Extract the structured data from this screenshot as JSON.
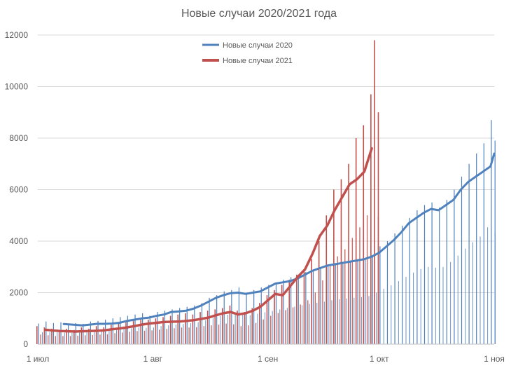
{
  "chart_data": {
    "type": "bar+line",
    "title": "Новые случаи 2020/2021 года",
    "xlabel": "",
    "ylabel": "",
    "ylim": [
      0,
      12000
    ],
    "y_ticks": [
      0,
      2000,
      4000,
      6000,
      8000,
      10000,
      12000
    ],
    "x_ticks": [
      {
        "label": "1 июл",
        "day": 0
      },
      {
        "label": "1 авг",
        "day": 31
      },
      {
        "label": "1 сен",
        "day": 62
      },
      {
        "label": "1 окт",
        "day": 92
      },
      {
        "label": "1 ноя",
        "day": 123
      }
    ],
    "grid": true,
    "legend_position": "top",
    "series": [
      {
        "name": "Новые случаи 2020",
        "color": "#4f81bd",
        "start_day": 0,
        "end_day": 123,
        "daily": [
          [
            0,
            800
          ],
          [
            2,
            880
          ],
          [
            4,
            820
          ],
          [
            6,
            850
          ],
          [
            8,
            760
          ],
          [
            10,
            820
          ],
          [
            12,
            790
          ],
          [
            14,
            880
          ],
          [
            16,
            900
          ],
          [
            18,
            950
          ],
          [
            20,
            1000
          ],
          [
            22,
            1050
          ],
          [
            24,
            1100
          ],
          [
            26,
            1150
          ],
          [
            28,
            1200
          ],
          [
            30,
            1100
          ],
          [
            32,
            1250
          ],
          [
            34,
            1300
          ],
          [
            36,
            1350
          ],
          [
            38,
            1400
          ],
          [
            40,
            1450
          ],
          [
            42,
            1500
          ],
          [
            44,
            1600
          ],
          [
            46,
            1800
          ],
          [
            48,
            1900
          ],
          [
            50,
            2050
          ],
          [
            52,
            2100
          ],
          [
            54,
            2200
          ],
          [
            56,
            2000
          ],
          [
            58,
            2100
          ],
          [
            60,
            2200
          ],
          [
            62,
            2300
          ],
          [
            64,
            2400
          ],
          [
            66,
            2500
          ],
          [
            68,
            2600
          ],
          [
            70,
            2700
          ],
          [
            72,
            2800
          ],
          [
            74,
            2900
          ],
          [
            76,
            2950
          ],
          [
            78,
            3050
          ],
          [
            80,
            3150
          ],
          [
            82,
            3200
          ],
          [
            84,
            3250
          ],
          [
            86,
            3300
          ],
          [
            88,
            3350
          ],
          [
            90,
            3450
          ],
          [
            92,
            3800
          ],
          [
            94,
            4000
          ],
          [
            96,
            4300
          ],
          [
            98,
            4600
          ],
          [
            100,
            4900
          ],
          [
            102,
            5200
          ],
          [
            104,
            5400
          ],
          [
            106,
            5500
          ],
          [
            108,
            5300
          ],
          [
            110,
            5600
          ],
          [
            112,
            6000
          ],
          [
            114,
            6500
          ],
          [
            116,
            7000
          ],
          [
            118,
            7400
          ],
          [
            120,
            7800
          ],
          [
            122,
            8700
          ],
          [
            123,
            7900
          ]
        ],
        "avg": [
          [
            7,
            780
          ],
          [
            10,
            750
          ],
          [
            12,
            730
          ],
          [
            14,
            760
          ],
          [
            16,
            790
          ],
          [
            18,
            790
          ],
          [
            20,
            800
          ],
          [
            22,
            830
          ],
          [
            24,
            900
          ],
          [
            26,
            950
          ],
          [
            28,
            1000
          ],
          [
            30,
            1030
          ],
          [
            32,
            1100
          ],
          [
            34,
            1150
          ],
          [
            36,
            1250
          ],
          [
            38,
            1270
          ],
          [
            40,
            1300
          ],
          [
            42,
            1380
          ],
          [
            44,
            1500
          ],
          [
            46,
            1650
          ],
          [
            48,
            1800
          ],
          [
            50,
            1900
          ],
          [
            52,
            1980
          ],
          [
            54,
            2000
          ],
          [
            56,
            1950
          ],
          [
            58,
            2000
          ],
          [
            60,
            2050
          ],
          [
            62,
            2200
          ],
          [
            64,
            2350
          ],
          [
            66,
            2400
          ],
          [
            68,
            2450
          ],
          [
            70,
            2550
          ],
          [
            72,
            2700
          ],
          [
            74,
            2850
          ],
          [
            76,
            2950
          ],
          [
            78,
            3050
          ],
          [
            80,
            3100
          ],
          [
            82,
            3150
          ],
          [
            84,
            3200
          ],
          [
            86,
            3250
          ],
          [
            88,
            3300
          ],
          [
            90,
            3400
          ],
          [
            92,
            3550
          ],
          [
            94,
            3800
          ],
          [
            96,
            4050
          ],
          [
            98,
            4350
          ],
          [
            100,
            4700
          ],
          [
            102,
            4900
          ],
          [
            104,
            5100
          ],
          [
            106,
            5250
          ],
          [
            108,
            5200
          ],
          [
            110,
            5400
          ],
          [
            112,
            5600
          ],
          [
            114,
            6000
          ],
          [
            116,
            6300
          ],
          [
            118,
            6500
          ],
          [
            120,
            6700
          ],
          [
            122,
            6900
          ],
          [
            123,
            7400
          ]
        ]
      },
      {
        "name": "Новые случаи 2021",
        "color": "#c0504d",
        "start_day": 0,
        "end_day": 92,
        "daily": [
          [
            0,
            700
          ],
          [
            2,
            650
          ],
          [
            4,
            600
          ],
          [
            6,
            550
          ],
          [
            8,
            600
          ],
          [
            10,
            550
          ],
          [
            12,
            650
          ],
          [
            14,
            600
          ],
          [
            16,
            700
          ],
          [
            18,
            650
          ],
          [
            20,
            750
          ],
          [
            22,
            800
          ],
          [
            24,
            850
          ],
          [
            26,
            900
          ],
          [
            28,
            950
          ],
          [
            30,
            950
          ],
          [
            32,
            1000
          ],
          [
            34,
            1050
          ],
          [
            36,
            1100
          ],
          [
            38,
            1150
          ],
          [
            40,
            1200
          ],
          [
            42,
            1150
          ],
          [
            44,
            1250
          ],
          [
            46,
            1300
          ],
          [
            48,
            1350
          ],
          [
            50,
            1400
          ],
          [
            52,
            1500
          ],
          [
            54,
            1300
          ],
          [
            56,
            1250
          ],
          [
            58,
            1400
          ],
          [
            60,
            1600
          ],
          [
            62,
            1900
          ],
          [
            64,
            2100
          ],
          [
            66,
            2300
          ],
          [
            68,
            2500
          ],
          [
            70,
            2700
          ],
          [
            72,
            2900
          ],
          [
            74,
            3300
          ],
          [
            76,
            4000
          ],
          [
            78,
            5000
          ],
          [
            80,
            6000
          ],
          [
            82,
            6400
          ],
          [
            84,
            7000
          ],
          [
            86,
            8000
          ],
          [
            88,
            8500
          ],
          [
            90,
            9700
          ],
          [
            91,
            11800
          ],
          [
            92,
            9000
          ]
        ],
        "avg": [
          [
            2,
            560
          ],
          [
            4,
            530
          ],
          [
            6,
            510
          ],
          [
            8,
            500
          ],
          [
            10,
            490
          ],
          [
            12,
            500
          ],
          [
            14,
            510
          ],
          [
            16,
            520
          ],
          [
            18,
            540
          ],
          [
            20,
            580
          ],
          [
            22,
            610
          ],
          [
            24,
            650
          ],
          [
            26,
            700
          ],
          [
            28,
            760
          ],
          [
            30,
            800
          ],
          [
            32,
            830
          ],
          [
            34,
            860
          ],
          [
            36,
            870
          ],
          [
            38,
            880
          ],
          [
            40,
            900
          ],
          [
            42,
            930
          ],
          [
            44,
            980
          ],
          [
            46,
            1030
          ],
          [
            48,
            1120
          ],
          [
            50,
            1200
          ],
          [
            52,
            1250
          ],
          [
            54,
            1150
          ],
          [
            56,
            1200
          ],
          [
            58,
            1300
          ],
          [
            60,
            1450
          ],
          [
            62,
            1700
          ],
          [
            64,
            1950
          ],
          [
            66,
            1900
          ],
          [
            68,
            2250
          ],
          [
            70,
            2600
          ],
          [
            72,
            2900
          ],
          [
            74,
            3500
          ],
          [
            76,
            4200
          ],
          [
            78,
            4600
          ],
          [
            80,
            5200
          ],
          [
            82,
            5700
          ],
          [
            84,
            6200
          ],
          [
            86,
            6400
          ],
          [
            88,
            6700
          ],
          [
            90,
            7600
          ]
        ]
      }
    ]
  }
}
